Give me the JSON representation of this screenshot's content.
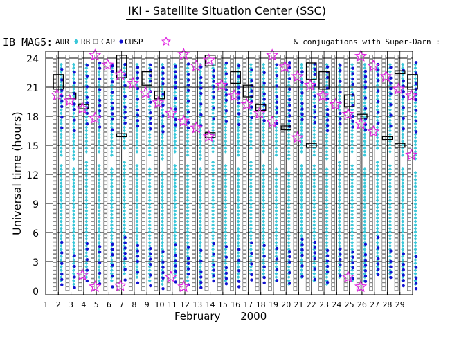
{
  "header": {
    "title": "IKI - Satellite Situation Center (SSC)"
  },
  "legend": {
    "satellite": "IB_MAG5:",
    "items": [
      {
        "label": "AUR",
        "marker": "diamond",
        "color": "#39c7d9"
      },
      {
        "label": "RB",
        "marker": "square",
        "color": "#ffffff"
      },
      {
        "label": "CAP",
        "marker": "dot",
        "color": "#1010d0"
      },
      {
        "label": "CUSP",
        "marker": "star",
        "color": "#e020e0"
      }
    ],
    "conjugations": "& conjugations with Super-Darn :"
  },
  "chart_data": {
    "type": "scatter",
    "title": "IKI - Satellite Situation Center (SSC)",
    "xlabel": "February      2000",
    "ylabel": "Universal time (hours)",
    "x_ticks": [
      1,
      2,
      3,
      4,
      5,
      6,
      7,
      8,
      9,
      10,
      11,
      12,
      13,
      14,
      15,
      16,
      17,
      18,
      19,
      20,
      21,
      22,
      23,
      24,
      25,
      26,
      27,
      28,
      29
    ],
    "y_ticks": [
      0,
      3,
      6,
      9,
      12,
      15,
      18,
      21,
      24
    ],
    "xlim": [
      1,
      30
    ],
    "ylim": [
      0,
      24
    ],
    "grid": true,
    "colors": {
      "aur": "#39c7d9",
      "rb": "#ffffff",
      "cap": "#1010d0",
      "cusp": "#e020e0",
      "conj": "#000000"
    },
    "cusp_points": [
      {
        "day": 2,
        "ut": 20.2
      },
      {
        "day": 3,
        "ut": 19.6
      },
      {
        "day": 4,
        "ut": 18.8
      },
      {
        "day": 4,
        "ut": 1.6
      },
      {
        "day": 5,
        "ut": 24.3
      },
      {
        "day": 5,
        "ut": 17.8
      },
      {
        "day": 5,
        "ut": 0.4
      },
      {
        "day": 6,
        "ut": 23.3
      },
      {
        "day": 7,
        "ut": 22.3
      },
      {
        "day": 7,
        "ut": 0.5
      },
      {
        "day": 8,
        "ut": 21.4
      },
      {
        "day": 9,
        "ut": 20.4
      },
      {
        "day": 10,
        "ut": 19.4
      },
      {
        "day": 11,
        "ut": 18.3
      },
      {
        "day": 11,
        "ut": 1.4
      },
      {
        "day": 12,
        "ut": 24.4
      },
      {
        "day": 12,
        "ut": 17.5
      },
      {
        "day": 12,
        "ut": 0.4
      },
      {
        "day": 13,
        "ut": 23.2
      },
      {
        "day": 13,
        "ut": 16.8
      },
      {
        "day": 14,
        "ut": 23.8
      },
      {
        "day": 14,
        "ut": 15.9
      },
      {
        "day": 15,
        "ut": 21.2
      },
      {
        "day": 16,
        "ut": 20.1
      },
      {
        "day": 17,
        "ut": 19.2
      },
      {
        "day": 18,
        "ut": 18.3
      },
      {
        "day": 19,
        "ut": 24.3
      },
      {
        "day": 19,
        "ut": 17.4
      },
      {
        "day": 20,
        "ut": 23.1
      },
      {
        "day": 21,
        "ut": 22.1
      },
      {
        "day": 21,
        "ut": 15.8
      },
      {
        "day": 22,
        "ut": 21.2
      },
      {
        "day": 23,
        "ut": 20.1
      },
      {
        "day": 24,
        "ut": 19.2
      },
      {
        "day": 25,
        "ut": 18.2
      },
      {
        "day": 25,
        "ut": 1.4
      },
      {
        "day": 26,
        "ut": 24.2
      },
      {
        "day": 26,
        "ut": 17.2
      },
      {
        "day": 26,
        "ut": 0.4
      },
      {
        "day": 27,
        "ut": 23.2
      },
      {
        "day": 27,
        "ut": 16.4
      },
      {
        "day": 28,
        "ut": 22.1
      },
      {
        "day": 29,
        "ut": 20.8
      },
      {
        "day": 30,
        "ut": 20.1
      },
      {
        "day": 30,
        "ut": 14.0
      }
    ],
    "conjugation_boxes": [
      {
        "day": 2,
        "ut_from": 20.8,
        "ut_to": 22.3
      },
      {
        "day": 3,
        "ut_from": 19.8,
        "ut_to": 20.4
      },
      {
        "day": 4,
        "ut_from": 18.8,
        "ut_to": 19.2
      },
      {
        "day": 7,
        "ut_from": 15.9,
        "ut_to": 16.2
      },
      {
        "day": 7,
        "ut_from": 22.0,
        "ut_to": 24.3
      },
      {
        "day": 9,
        "ut_from": 21.2,
        "ut_to": 22.6
      },
      {
        "day": 10,
        "ut_from": 19.8,
        "ut_to": 20.6
      },
      {
        "day": 14,
        "ut_from": 15.8,
        "ut_to": 16.3
      },
      {
        "day": 14,
        "ut_from": 23.2,
        "ut_to": 24.3
      },
      {
        "day": 16,
        "ut_from": 21.4,
        "ut_to": 22.6
      },
      {
        "day": 17,
        "ut_from": 20.0,
        "ut_to": 21.2
      },
      {
        "day": 18,
        "ut_from": 18.6,
        "ut_to": 19.2
      },
      {
        "day": 20,
        "ut_from": 16.6,
        "ut_to": 17.0
      },
      {
        "day": 22,
        "ut_from": 14.8,
        "ut_to": 15.2
      },
      {
        "day": 22,
        "ut_from": 21.8,
        "ut_to": 23.5
      },
      {
        "day": 23,
        "ut_from": 20.8,
        "ut_to": 22.6
      },
      {
        "day": 25,
        "ut_from": 19.0,
        "ut_to": 20.2
      },
      {
        "day": 26,
        "ut_from": 17.8,
        "ut_to": 18.2
      },
      {
        "day": 28,
        "ut_from": 15.6,
        "ut_to": 15.9
      },
      {
        "day": 29,
        "ut_from": 14.8,
        "ut_to": 15.2
      },
      {
        "day": 29,
        "ut_from": 22.4,
        "ut_to": 22.7
      },
      {
        "day": 30,
        "ut_from": 20.8,
        "ut_to": 22.3
      }
    ]
  }
}
